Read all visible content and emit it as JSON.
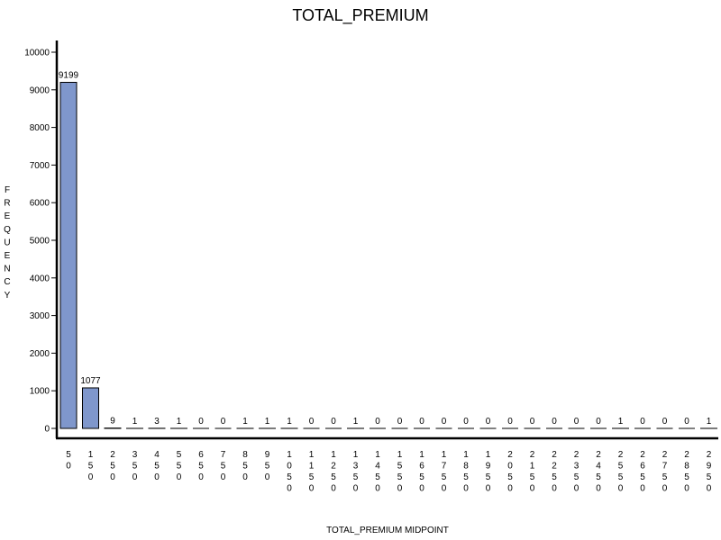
{
  "chart_data": {
    "type": "bar",
    "title": "TOTAL_PREMIUM",
    "xlabel": "TOTAL_PREMIUM MIDPOINT",
    "ylabel": "FREQUENCY",
    "ylim": [
      0,
      10000
    ],
    "yticks": [
      0,
      1000,
      2000,
      3000,
      4000,
      5000,
      6000,
      7000,
      8000,
      9000,
      10000
    ],
    "categories": [
      "50",
      "150",
      "250",
      "350",
      "450",
      "550",
      "650",
      "750",
      "850",
      "950",
      "1050",
      "1150",
      "1250",
      "1350",
      "1450",
      "1550",
      "1650",
      "1750",
      "1850",
      "1950",
      "2050",
      "2150",
      "2250",
      "2350",
      "2450",
      "2550",
      "2650",
      "2750",
      "2850",
      "2950"
    ],
    "values": [
      9199,
      1077,
      9,
      1,
      3,
      1,
      0,
      0,
      1,
      1,
      1,
      0,
      0,
      1,
      0,
      0,
      0,
      0,
      0,
      0,
      0,
      0,
      0,
      0,
      0,
      1,
      0,
      0,
      0,
      1
    ],
    "grid": false,
    "legend": "none",
    "bar_color": "#7f97cc",
    "bar_edge_color": "#000000"
  }
}
